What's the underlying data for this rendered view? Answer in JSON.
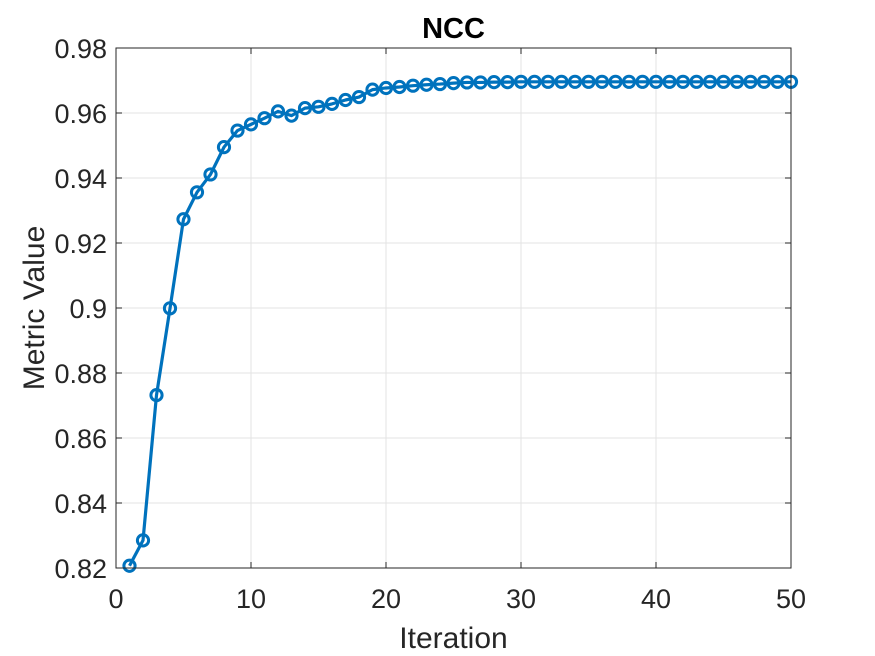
{
  "chart_data": {
    "type": "line",
    "title": "NCC",
    "xlabel": "Iteration",
    "ylabel": "Metric Value",
    "xlim": [
      0,
      50
    ],
    "ylim": [
      0.82,
      0.98
    ],
    "xticks": [
      0,
      10,
      20,
      30,
      40,
      50
    ],
    "yticks": [
      0.82,
      0.84,
      0.86,
      0.88,
      0.9,
      0.92,
      0.94,
      0.96,
      0.98
    ],
    "xtick_labels": [
      "0",
      "10",
      "20",
      "30",
      "40",
      "50"
    ],
    "ytick_labels": [
      "0.82",
      "0.84",
      "0.86",
      "0.88",
      "0.9",
      "0.92",
      "0.94",
      "0.96",
      "0.98"
    ],
    "grid": true,
    "marker": "circle",
    "series": [
      {
        "color": "#0072BD",
        "x": [
          1,
          2,
          3,
          4,
          5,
          6,
          7,
          8,
          9,
          10,
          11,
          12,
          13,
          14,
          15,
          16,
          17,
          18,
          19,
          20,
          21,
          22,
          23,
          24,
          25,
          26,
          27,
          28,
          29,
          30,
          31,
          32,
          33,
          34,
          35,
          36,
          37,
          38,
          39,
          40,
          41,
          42,
          43,
          44,
          45,
          46,
          47,
          48,
          49,
          50
        ],
        "values": [
          0.8207,
          0.8285,
          0.8732,
          0.8999,
          0.9273,
          0.9356,
          0.9411,
          0.9495,
          0.9546,
          0.9565,
          0.9584,
          0.9605,
          0.9592,
          0.9615,
          0.9619,
          0.9628,
          0.964,
          0.9649,
          0.9672,
          0.9677,
          0.968,
          0.9684,
          0.9687,
          0.9689,
          0.9692,
          0.9694,
          0.9694,
          0.9695,
          0.9695,
          0.9696,
          0.9696,
          0.9696,
          0.9696,
          0.9696,
          0.9696,
          0.9696,
          0.9696,
          0.9696,
          0.9696,
          0.9696,
          0.9696,
          0.9696,
          0.9696,
          0.9696,
          0.9696,
          0.9696,
          0.9696,
          0.9696,
          0.9696,
          0.9696
        ]
      }
    ]
  }
}
